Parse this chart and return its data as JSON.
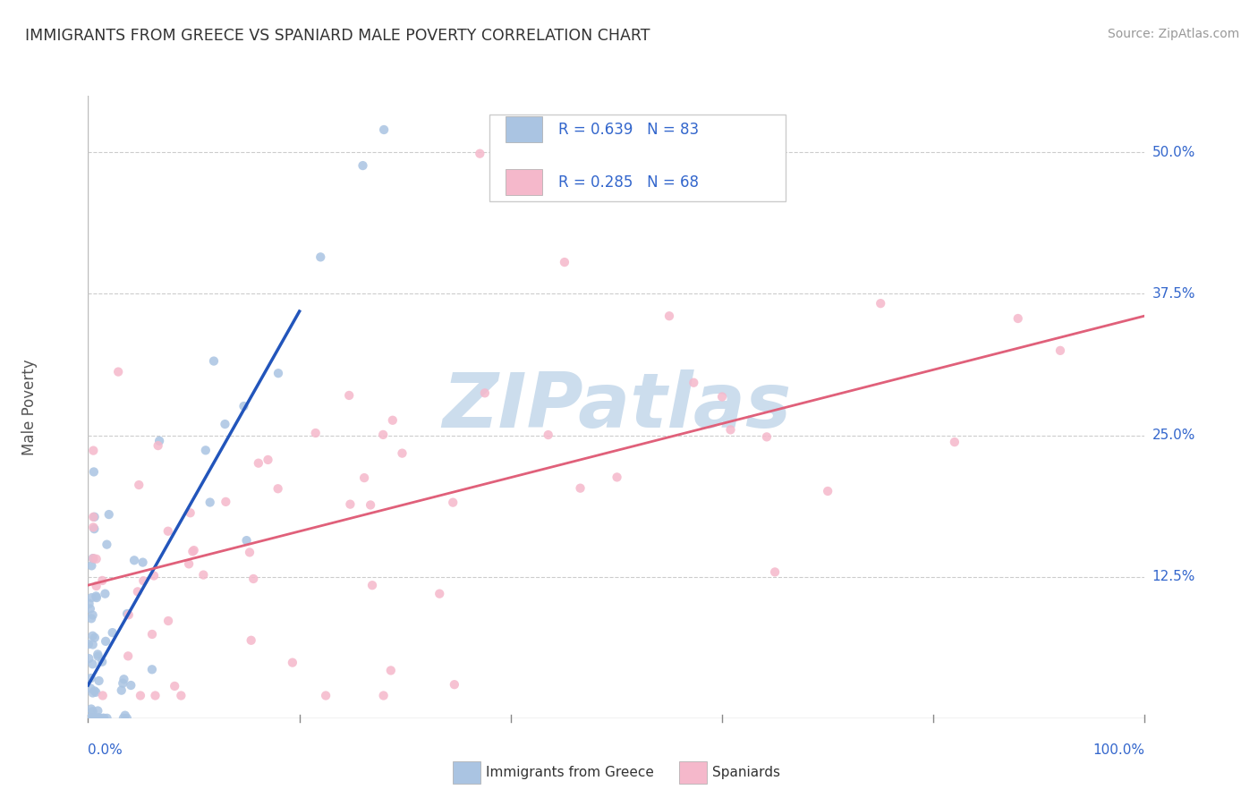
{
  "title": "IMMIGRANTS FROM GREECE VS SPANIARD MALE POVERTY CORRELATION CHART",
  "source": "Source: ZipAtlas.com",
  "ylabel": "Male Poverty",
  "color_greece": "#aac4e2",
  "color_spain": "#f5b8cb",
  "line_color_greece": "#2255bb",
  "line_color_spain": "#e0607a",
  "watermark": "ZIPatlas",
  "watermark_color": "#ccdded",
  "background_color": "#ffffff",
  "grid_color": "#cccccc",
  "legend1_r": "0.639",
  "legend1_n": "83",
  "legend2_r": "0.285",
  "legend2_n": "68",
  "legend_label_greece": "Immigrants from Greece",
  "legend_label_spain": "Spaniards",
  "text_color_blue": "#3366cc",
  "text_color_dark": "#333333",
  "text_color_gray": "#999999"
}
